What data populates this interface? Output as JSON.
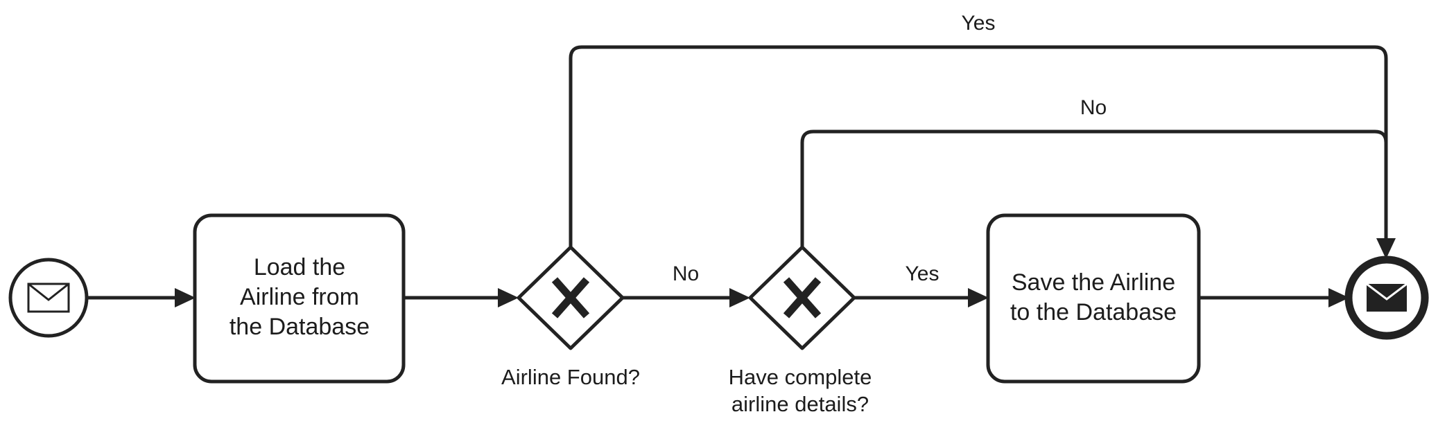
{
  "colors": {
    "stroke": "#222222",
    "text": "#1c1c1c",
    "background": "#ffffff"
  },
  "start_event": {
    "icon": "envelope-outline-icon"
  },
  "end_event": {
    "icon": "envelope-filled-icon"
  },
  "task_load": {
    "lines": [
      "Load the",
      "Airline from",
      "the Database"
    ]
  },
  "task_save": {
    "lines": [
      "Save the Airline",
      "to the Database"
    ]
  },
  "gateway_found": {
    "label": "Airline Found?"
  },
  "gateway_details": {
    "label_lines": [
      "Have complete",
      "airline details?"
    ]
  },
  "edges": {
    "found_yes": "Yes",
    "found_no": "No",
    "details_no": "No",
    "details_yes": "Yes"
  }
}
